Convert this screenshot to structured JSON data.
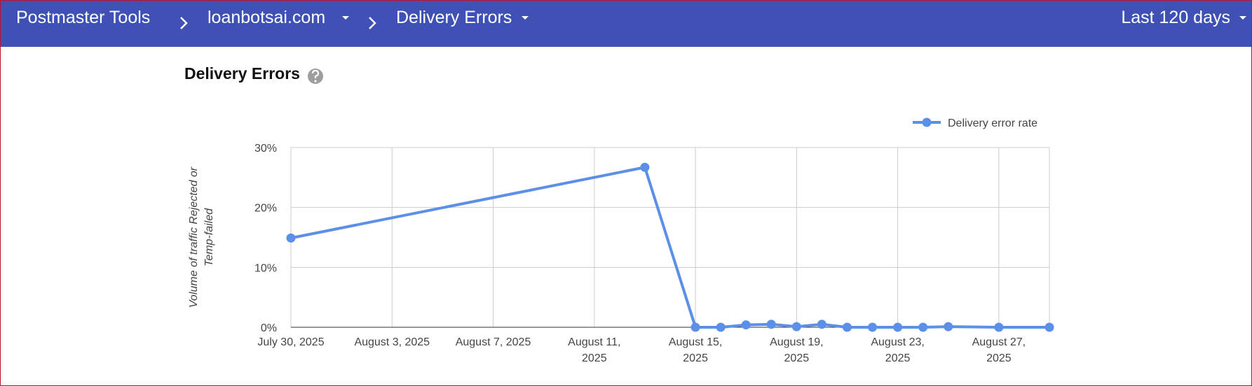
{
  "header": {
    "app": "Postmaster Tools",
    "domain": "loanbotsai.com",
    "page": "Delivery Errors",
    "range": "Last 120 days"
  },
  "chart_data": {
    "type": "line",
    "title": "Delivery Errors",
    "y_label": "Volume of traffic Rejected or Temp-failed",
    "x": [
      "2025-07-30",
      "2025-08-13",
      "2025-08-15",
      "2025-08-16",
      "2025-08-17",
      "2025-08-18",
      "2025-08-19",
      "2025-08-20",
      "2025-08-21",
      "2025-08-22",
      "2025-08-23",
      "2025-08-24",
      "2025-08-25",
      "2025-08-27",
      "2025-08-29"
    ],
    "series": [
      {
        "name": "Delivery error rate",
        "color": "#5b8fe8",
        "values": [
          14.9,
          26.7,
          0,
          0,
          0.4,
          0.5,
          0.1,
          0.5,
          0,
          0,
          0,
          0,
          0.1,
          0,
          0
        ]
      }
    ],
    "xlim": [
      "2025-07-30",
      "2025-08-29"
    ],
    "xticks": [
      {
        "value": "2025-07-30",
        "label": "July 30, 2025"
      },
      {
        "value": "2025-08-03",
        "label": "August 3, 2025"
      },
      {
        "value": "2025-08-07",
        "label": "August 7, 2025"
      },
      {
        "value": "2025-08-11",
        "label": "August 11, 2025"
      },
      {
        "value": "2025-08-15",
        "label": "August 15, 2025"
      },
      {
        "value": "2025-08-19",
        "label": "August 19, 2025"
      },
      {
        "value": "2025-08-23",
        "label": "August 23, 2025"
      },
      {
        "value": "2025-08-27",
        "label": "August 27, 2025"
      }
    ],
    "ylim": [
      0,
      30
    ],
    "yticks": [
      {
        "value": 0,
        "label": "0%"
      },
      {
        "value": 10,
        "label": "10%"
      },
      {
        "value": 20,
        "label": "20%"
      },
      {
        "value": 30,
        "label": "30%"
      }
    ],
    "grid": true,
    "legend": "top-right"
  }
}
